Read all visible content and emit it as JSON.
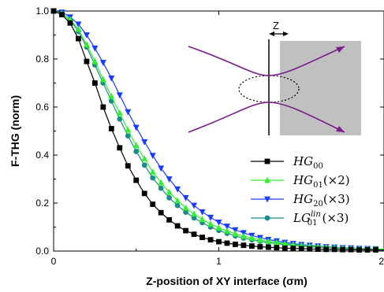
{
  "chart_data": {
    "type": "line",
    "title": "",
    "xlabel": "Z-position of XY interface (σm)",
    "ylabel": "F-THG (norm)",
    "xlim": [
      0,
      2
    ],
    "ylim": [
      0,
      1
    ],
    "x_ticks": [
      0,
      1,
      2
    ],
    "x_tick_labels": [
      "0",
      "1",
      "2"
    ],
    "y_ticks": [
      0.0,
      0.2,
      0.4,
      0.6,
      0.8,
      1.0
    ],
    "y_tick_labels": [
      "0.0",
      "0.2",
      "0.4",
      "0.6",
      "0.8",
      "1.0"
    ],
    "grid": false,
    "legend_position": "right",
    "x": [
      0.0,
      0.05,
      0.1,
      0.15,
      0.2,
      0.25,
      0.3,
      0.35,
      0.4,
      0.45,
      0.5,
      0.55,
      0.6,
      0.65,
      0.7,
      0.75,
      0.8,
      0.85,
      0.9,
      0.95,
      1.0,
      1.05,
      1.1,
      1.15,
      1.2,
      1.25,
      1.3,
      1.35,
      1.4,
      1.45,
      1.5,
      1.55,
      1.6,
      1.65,
      1.7,
      1.75,
      1.8,
      1.85,
      1.9,
      1.95,
      2.0
    ],
    "series": [
      {
        "name": "HG00",
        "color": "#000000",
        "marker": "square",
        "values": [
          1.0,
          0.985,
          0.95,
          0.885,
          0.79,
          0.7,
          0.6,
          0.51,
          0.43,
          0.355,
          0.295,
          0.24,
          0.195,
          0.16,
          0.13,
          0.105,
          0.085,
          0.07,
          0.057,
          0.047,
          0.039,
          0.033,
          0.028,
          0.024,
          0.021,
          0.018,
          0.016,
          0.014,
          0.012,
          0.011,
          0.01,
          0.009,
          0.008,
          0.007,
          0.007,
          0.006,
          0.006,
          0.005,
          0.005,
          0.005,
          0.004
        ]
      },
      {
        "name": "HG01(×2)",
        "color": "#33ee33",
        "marker": "triangle-up",
        "values": [
          1.0,
          0.99,
          0.965,
          0.925,
          0.86,
          0.79,
          0.715,
          0.645,
          0.575,
          0.505,
          0.44,
          0.385,
          0.33,
          0.285,
          0.245,
          0.21,
          0.18,
          0.155,
          0.132,
          0.113,
          0.097,
          0.084,
          0.072,
          0.062,
          0.054,
          0.047,
          0.041,
          0.036,
          0.031,
          0.027,
          0.024,
          0.021,
          0.019,
          0.017,
          0.015,
          0.013,
          0.012,
          0.011,
          0.01,
          0.009,
          0.008
        ]
      },
      {
        "name": "HG20(×3)",
        "color": "#1a3cff",
        "marker": "triangle-down",
        "values": [
          1.0,
          0.995,
          0.975,
          0.945,
          0.9,
          0.845,
          0.785,
          0.72,
          0.65,
          0.58,
          0.515,
          0.455,
          0.398,
          0.345,
          0.3,
          0.258,
          0.222,
          0.19,
          0.163,
          0.14,
          0.12,
          0.103,
          0.088,
          0.076,
          0.065,
          0.056,
          0.048,
          0.042,
          0.036,
          0.031,
          0.027,
          0.024,
          0.021,
          0.018,
          0.016,
          0.014,
          0.013,
          0.011,
          0.01,
          0.009,
          0.008
        ]
      },
      {
        "name": "LG01lin(×3)",
        "color": "#1a8c8c",
        "marker": "circle",
        "values": [
          1.0,
          0.99,
          0.962,
          0.915,
          0.85,
          0.775,
          0.7,
          0.625,
          0.55,
          0.48,
          0.415,
          0.358,
          0.305,
          0.262,
          0.222,
          0.19,
          0.162,
          0.138,
          0.118,
          0.1,
          0.086,
          0.074,
          0.063,
          0.054,
          0.047,
          0.041,
          0.035,
          0.031,
          0.027,
          0.024,
          0.021,
          0.018,
          0.016,
          0.014,
          0.013,
          0.011,
          0.01,
          0.009,
          0.008,
          0.007,
          0.007
        ]
      }
    ],
    "legend": [
      {
        "base": "HG",
        "sub": "00",
        "sup": "",
        "suffix": ""
      },
      {
        "base": "HG",
        "sub": "01",
        "sup": "",
        "suffix": "(×2)"
      },
      {
        "base": "HG",
        "sub": "20",
        "sup": "",
        "suffix": "(×3)"
      },
      {
        "base": "LG",
        "sub": "01",
        "sup": "lin",
        "suffix": "(×3)"
      }
    ],
    "inset": {
      "label": "Z",
      "beam_color": "#7a1a8c",
      "material_color": "#c0c0c0"
    }
  }
}
